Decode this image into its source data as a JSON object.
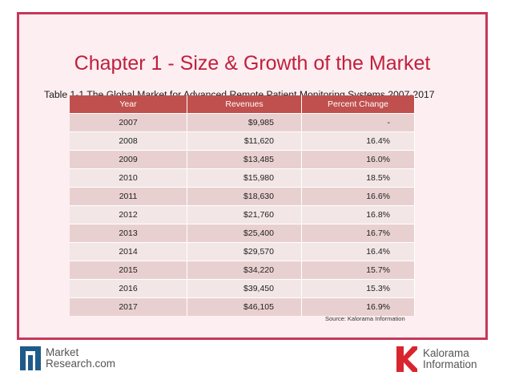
{
  "slide": {
    "title": "Chapter 1 - Size & Growth of the Market",
    "subtitle": "Table 1-1 The Global Market for Advanced Remote Patient Monitoring Systems 2007-2017",
    "source": "Source: Kalorama Information"
  },
  "table": {
    "headers": [
      "Year",
      "Revenues",
      "Percent Change"
    ],
    "rows": [
      [
        "2007",
        "$9,985",
        "-"
      ],
      [
        "2008",
        "$11,620",
        "16.4%"
      ],
      [
        "2009",
        "$13,485",
        "16.0%"
      ],
      [
        "2010",
        "$15,980",
        "18.5%"
      ],
      [
        "2011",
        "$18,630",
        "16.6%"
      ],
      [
        "2012",
        "$21,760",
        "16.8%"
      ],
      [
        "2013",
        "$25,400",
        "16.7%"
      ],
      [
        "2014",
        "$29,570",
        "16.4%"
      ],
      [
        "2015",
        "$34,220",
        "15.7%"
      ],
      [
        "2016",
        "$39,450",
        "15.3%"
      ],
      [
        "2017",
        "$46,105",
        "16.9%"
      ]
    ]
  },
  "footer": {
    "market_research": {
      "line1": "Market",
      "line2": "Research.com",
      "icon": "market-research-logo-icon",
      "color": "#1f5b8a"
    },
    "kalorama": {
      "line1": "Kalorama",
      "line2": "Information",
      "icon": "kalorama-logo-icon",
      "color": "#d8262f"
    }
  },
  "colors": {
    "accent": "#c0203e",
    "header_bg": "#c0504d",
    "row_odd": "#e9d0d0",
    "row_even": "#f2e6e6",
    "slide_bg": "#fdeef1"
  }
}
